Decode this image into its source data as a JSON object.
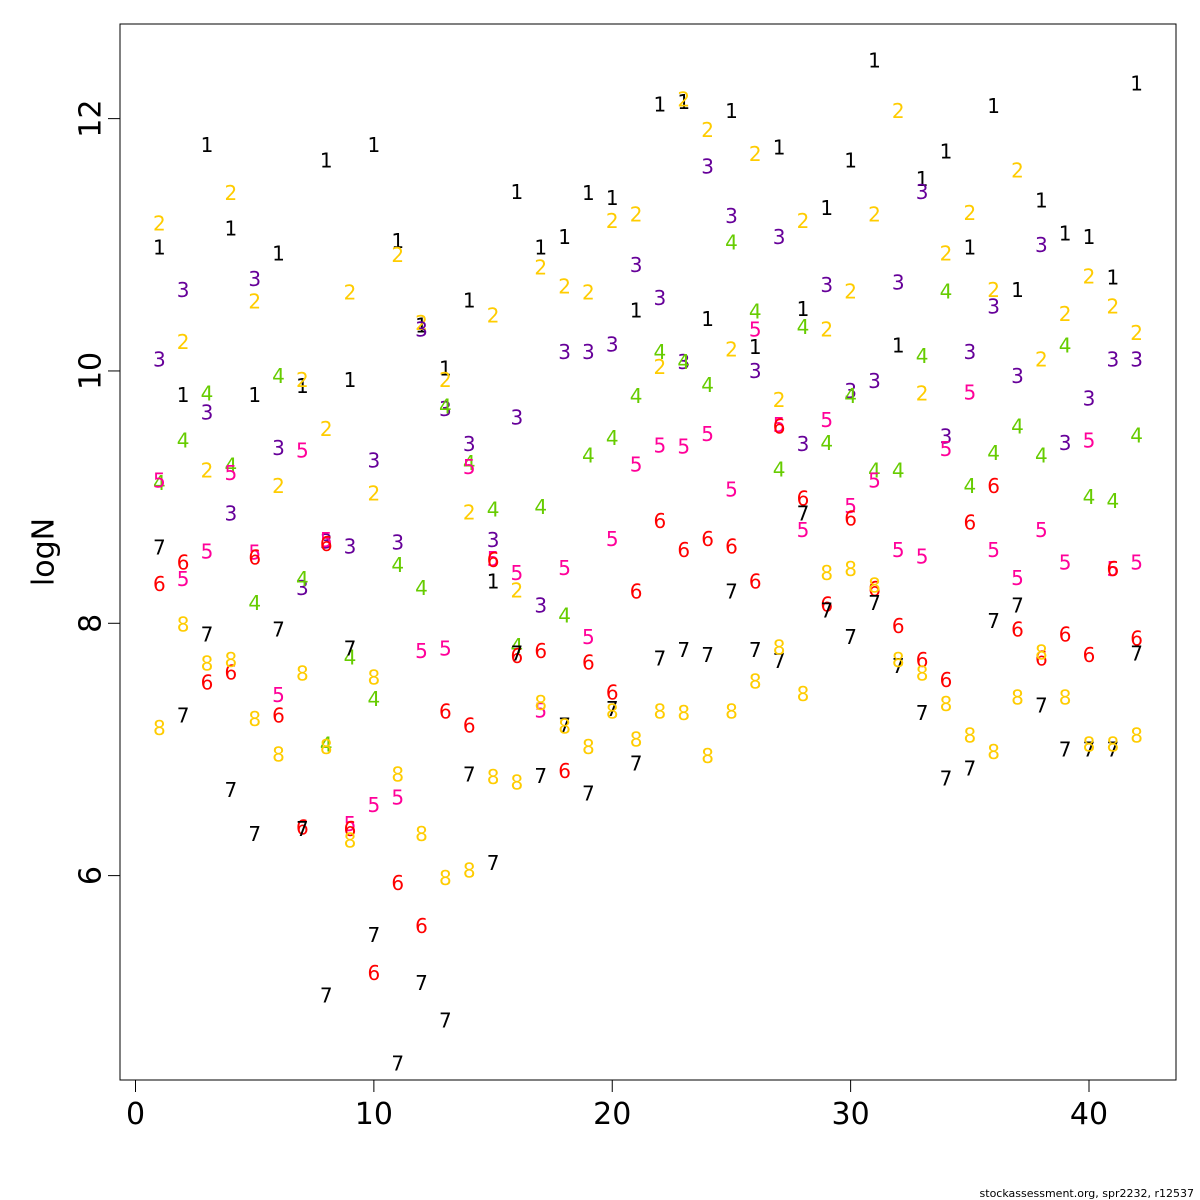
{
  "chart_data": {
    "type": "scatter",
    "title": "",
    "xlabel": "",
    "ylabel": "logN",
    "xlim": [
      -0.65,
      43.65
    ],
    "ylim": [
      4.38,
      12.75
    ],
    "xticks": [
      0,
      10,
      20,
      30,
      40
    ],
    "yticks": [
      6,
      8,
      10,
      12
    ],
    "grid": false,
    "legend": "none",
    "series": [
      {
        "label": "1",
        "color": "#000000",
        "x": [
          1,
          2,
          3,
          4,
          5,
          6,
          7,
          8,
          9,
          10,
          11,
          12,
          13,
          14,
          15,
          16,
          17,
          18,
          19,
          20,
          21,
          22,
          23,
          24,
          25,
          26,
          27,
          28,
          29,
          30,
          31,
          32,
          33,
          34,
          35,
          36,
          37,
          38,
          39,
          40,
          41,
          42
        ],
        "y": [
          10.98,
          9.81,
          11.79,
          11.13,
          9.81,
          10.93,
          9.88,
          11.67,
          9.93,
          11.79,
          11.03,
          10.36,
          10.02,
          10.56,
          8.33,
          11.42,
          10.98,
          11.06,
          11.41,
          11.37,
          10.48,
          12.11,
          12.13,
          10.41,
          12.06,
          10.19,
          11.77,
          10.49,
          11.29,
          11.67,
          12.46,
          10.2,
          11.52,
          11.74,
          10.98,
          12.1,
          10.64,
          11.35,
          11.09,
          11.06,
          10.74,
          12.28
        ]
      },
      {
        "label": "2",
        "color": "#ffcc00",
        "x": [
          1,
          2,
          3,
          4,
          5,
          6,
          7,
          8,
          9,
          10,
          11,
          12,
          13,
          14,
          15,
          16,
          17,
          18,
          19,
          20,
          21,
          22,
          23,
          24,
          25,
          26,
          27,
          28,
          29,
          30,
          31,
          32,
          33,
          34,
          35,
          36,
          37,
          38,
          39,
          40,
          41,
          42
        ],
        "y": [
          11.17,
          10.23,
          9.21,
          11.41,
          10.55,
          9.09,
          9.93,
          9.54,
          10.62,
          9.03,
          10.92,
          10.38,
          9.93,
          8.88,
          10.44,
          8.26,
          10.82,
          10.67,
          10.62,
          11.19,
          11.24,
          10.03,
          12.15,
          11.91,
          10.17,
          11.72,
          9.77,
          11.19,
          10.33,
          10.63,
          11.24,
          12.06,
          9.82,
          10.93,
          11.25,
          10.64,
          11.59,
          10.09,
          10.45,
          10.75,
          10.51,
          10.3
        ]
      },
      {
        "label": "3",
        "color": "#660099",
        "x": [
          1,
          2,
          3,
          4,
          5,
          6,
          7,
          8,
          9,
          10,
          11,
          12,
          13,
          14,
          15,
          16,
          17,
          18,
          19,
          20,
          21,
          22,
          23,
          24,
          25,
          26,
          27,
          28,
          29,
          30,
          31,
          32,
          33,
          34,
          35,
          36,
          37,
          38,
          39,
          40,
          41,
          42
        ],
        "y": [
          10.09,
          10.64,
          9.67,
          8.87,
          10.73,
          9.39,
          8.28,
          8.65,
          8.61,
          9.29,
          8.64,
          10.33,
          9.7,
          9.42,
          8.66,
          9.63,
          8.14,
          10.15,
          10.15,
          10.21,
          10.84,
          10.58,
          10.07,
          11.62,
          11.23,
          10.0,
          11.06,
          9.42,
          10.68,
          9.84,
          9.92,
          10.7,
          11.42,
          9.48,
          10.15,
          10.51,
          9.96,
          11.0,
          9.43,
          9.78,
          10.09,
          10.09
        ]
      },
      {
        "label": "4",
        "color": "#66cc00",
        "x": [
          1,
          2,
          3,
          4,
          5,
          6,
          7,
          8,
          9,
          10,
          11,
          12,
          13,
          14,
          15,
          16,
          17,
          18,
          19,
          20,
          21,
          22,
          23,
          24,
          25,
          26,
          27,
          28,
          29,
          30,
          31,
          32,
          33,
          34,
          35,
          36,
          37,
          38,
          39,
          40,
          41,
          42
        ],
        "y": [
          9.11,
          9.45,
          9.82,
          9.25,
          8.16,
          9.96,
          8.35,
          7.04,
          7.73,
          7.4,
          8.46,
          8.28,
          9.72,
          9.27,
          8.9,
          7.82,
          8.92,
          8.06,
          9.33,
          9.47,
          9.8,
          10.15,
          10.07,
          9.89,
          11.02,
          10.47,
          9.22,
          10.35,
          9.43,
          9.8,
          9.21,
          9.21,
          10.12,
          10.63,
          9.09,
          9.35,
          9.56,
          9.33,
          10.2,
          9.0,
          8.97,
          9.49
        ]
      },
      {
        "label": "5",
        "color": "#ff0099",
        "x": [
          1,
          2,
          3,
          4,
          5,
          6,
          7,
          8,
          9,
          10,
          11,
          12,
          13,
          14,
          15,
          16,
          17,
          18,
          19,
          20,
          21,
          22,
          23,
          24,
          25,
          26,
          27,
          28,
          29,
          30,
          31,
          32,
          33,
          34,
          35,
          36,
          37,
          38,
          39,
          40,
          41,
          42
        ],
        "y": [
          9.13,
          8.35,
          8.57,
          9.19,
          8.56,
          7.43,
          9.37,
          8.66,
          6.41,
          6.56,
          6.62,
          7.78,
          7.8,
          9.24,
          8.51,
          8.4,
          7.31,
          8.44,
          7.89,
          8.67,
          9.26,
          9.41,
          9.4,
          9.5,
          9.06,
          10.33,
          9.57,
          8.74,
          9.61,
          8.93,
          9.13,
          8.58,
          8.53,
          9.38,
          9.83,
          8.58,
          8.36,
          8.74,
          8.48,
          9.45,
          8.43,
          8.48
        ]
      },
      {
        "label": "6",
        "color": "#ff0000",
        "x": [
          1,
          2,
          3,
          4,
          5,
          6,
          7,
          8,
          9,
          10,
          11,
          12,
          13,
          14,
          15,
          16,
          17,
          18,
          19,
          20,
          21,
          22,
          23,
          24,
          25,
          26,
          27,
          28,
          29,
          30,
          31,
          32,
          33,
          34,
          35,
          36,
          37,
          38,
          39,
          40,
          41,
          42
        ],
        "y": [
          8.31,
          8.48,
          7.53,
          7.61,
          8.52,
          7.27,
          6.38,
          8.63,
          6.37,
          5.23,
          5.94,
          5.6,
          7.3,
          7.19,
          8.5,
          7.74,
          7.78,
          6.83,
          7.69,
          7.45,
          8.25,
          8.81,
          8.58,
          8.67,
          8.61,
          8.33,
          9.56,
          8.99,
          8.15,
          8.83,
          8.27,
          7.98,
          7.71,
          7.55,
          8.8,
          9.09,
          7.95,
          7.72,
          7.91,
          7.75,
          8.43,
          7.88
        ]
      },
      {
        "label": "7",
        "color": "#000000",
        "x": [
          1,
          2,
          3,
          4,
          5,
          6,
          7,
          8,
          9,
          10,
          11,
          12,
          13,
          14,
          15,
          16,
          17,
          18,
          19,
          20,
          21,
          22,
          23,
          24,
          25,
          26,
          27,
          28,
          29,
          30,
          31,
          32,
          33,
          34,
          35,
          36,
          37,
          38,
          39,
          40,
          41,
          42
        ],
        "y": [
          8.6,
          7.27,
          7.91,
          6.68,
          6.33,
          7.95,
          6.37,
          5.05,
          7.8,
          5.53,
          4.51,
          5.15,
          4.85,
          6.8,
          6.1,
          7.76,
          6.79,
          7.19,
          6.65,
          7.32,
          6.89,
          7.72,
          7.79,
          7.75,
          8.25,
          7.79,
          7.7,
          8.87,
          8.1,
          7.89,
          8.16,
          7.66,
          7.29,
          6.77,
          6.85,
          8.02,
          8.14,
          7.35,
          7.0,
          7.0,
          7.0,
          7.76
        ]
      },
      {
        "label": "8",
        "color": "#ffcc00",
        "x": [
          1,
          2,
          3,
          4,
          5,
          6,
          7,
          8,
          9,
          10,
          11,
          12,
          13,
          14,
          15,
          16,
          17,
          18,
          19,
          20,
          21,
          22,
          23,
          24,
          25,
          26,
          27,
          28,
          29,
          30,
          31,
          32,
          33,
          34,
          35,
          36,
          37,
          38,
          39,
          40,
          41,
          42
        ],
        "y": [
          7.17,
          7.99,
          7.68,
          7.71,
          7.24,
          6.96,
          7.6,
          7.02,
          6.28,
          7.57,
          6.8,
          6.33,
          5.98,
          6.04,
          6.78,
          6.74,
          7.37,
          7.18,
          7.02,
          7.3,
          7.08,
          7.3,
          7.29,
          6.95,
          7.3,
          7.54,
          7.81,
          7.44,
          8.4,
          8.43,
          8.3,
          7.71,
          7.6,
          7.36,
          7.11,
          6.98,
          7.41,
          7.77,
          7.41,
          7.04,
          7.04,
          7.11
        ]
      }
    ]
  },
  "footer": "stockassessment.org, spr2232, r12537"
}
